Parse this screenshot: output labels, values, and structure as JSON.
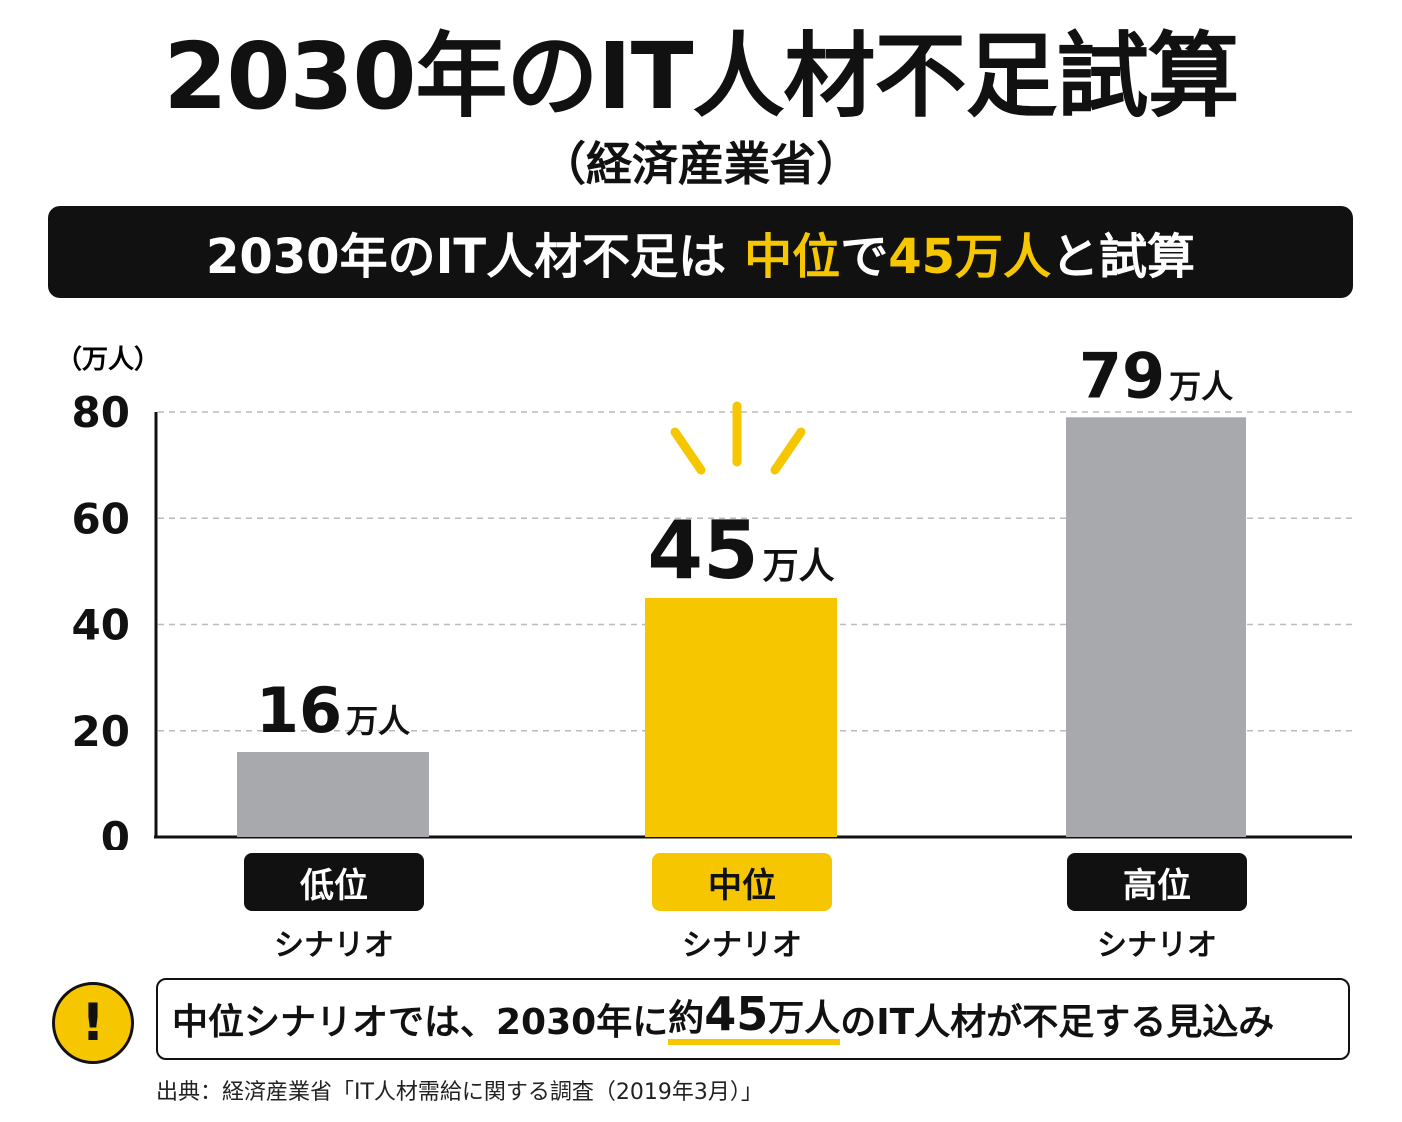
{
  "header": {
    "title": "2030年のIT人材不足試算",
    "subtitle": "（経済産業省）"
  },
  "banner": {
    "prefix": "2030年のIT人材不足は",
    "highlight1": "中位",
    "middle": "で",
    "highlight2": "45万人",
    "suffix": "と試算"
  },
  "chart_data": {
    "type": "bar",
    "y_unit": "（万人）",
    "ylim": [
      0,
      80
    ],
    "y_ticks": [
      0,
      20,
      40,
      60,
      80
    ],
    "grid": true,
    "categories": [
      "低位",
      "中位",
      "高位"
    ],
    "category_sublabel": "シナリオ",
    "values": [
      16,
      45,
      79
    ],
    "data_labels": [
      {
        "num": "16",
        "unit": "万人"
      },
      {
        "num": "45",
        "unit": "万人"
      },
      {
        "num": "79",
        "unit": "万人"
      }
    ],
    "highlight_index": 1,
    "colors": {
      "bar": "#a7a9ac",
      "highlight": "#f6c700",
      "text": "#111111",
      "grid": "#bbbbbb"
    }
  },
  "scenarios": [
    {
      "label": "低位",
      "sub": "シナリオ"
    },
    {
      "label": "中位",
      "sub": "シナリオ"
    },
    {
      "label": "高位",
      "sub": "シナリオ"
    }
  ],
  "note": {
    "badge": "!",
    "part1": "中位シナリオでは、2030年に",
    "part2a": "約",
    "part2b": "45",
    "part2c": "万人",
    "part3": "のIT人材が不足する見込み",
    "badge_icon": "exclamation-icon"
  },
  "source": "出典：経済産業省「IT人材需給に関する調査（2019年3月）」"
}
